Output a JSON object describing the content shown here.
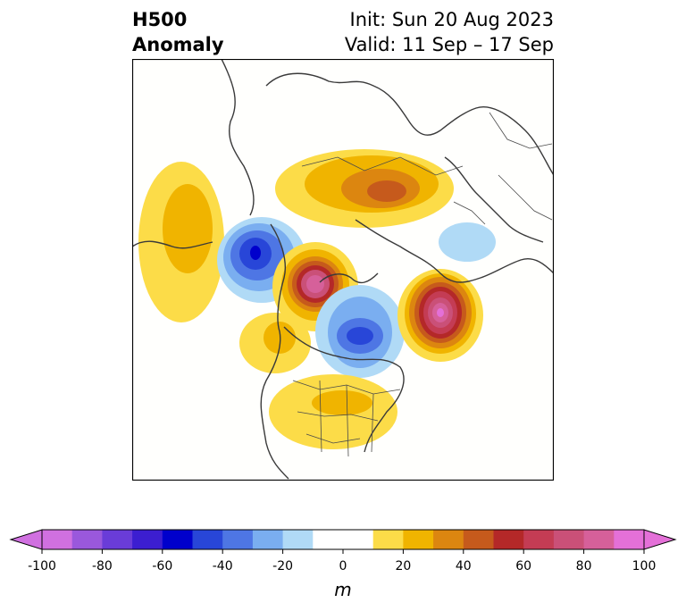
{
  "title": {
    "line1_left": "H500",
    "line2_left": "Anomaly",
    "line1_right": "Init: Sun 20 Aug 2023",
    "line2_right": "Valid: 11 Sep – 17 Sep"
  },
  "colorbar": {
    "unit": "m",
    "ticks": [
      "-100",
      "-80",
      "-60",
      "-40",
      "-20",
      "0",
      "20",
      "40",
      "60",
      "80",
      "100"
    ],
    "levels": [
      -100,
      -90,
      -80,
      -70,
      -60,
      -50,
      -40,
      -30,
      -20,
      -10,
      10,
      20,
      30,
      40,
      50,
      60,
      70,
      80,
      90,
      100
    ],
    "colors": [
      "#d070e0",
      "#9a58dc",
      "#6a3cd8",
      "#3c1ed0",
      "#0000cc",
      "#2846d8",
      "#4e76e4",
      "#7aaef0",
      "#b0daf6",
      "#ffffff",
      "#fcdc48",
      "#f0b400",
      "#dc8610",
      "#c65a1c",
      "#b42828",
      "#c43c54",
      "#ca5078",
      "#d6609a",
      "#e470d8"
    ],
    "under_color": "#d070e0",
    "over_color": "#e470d8"
  }
}
